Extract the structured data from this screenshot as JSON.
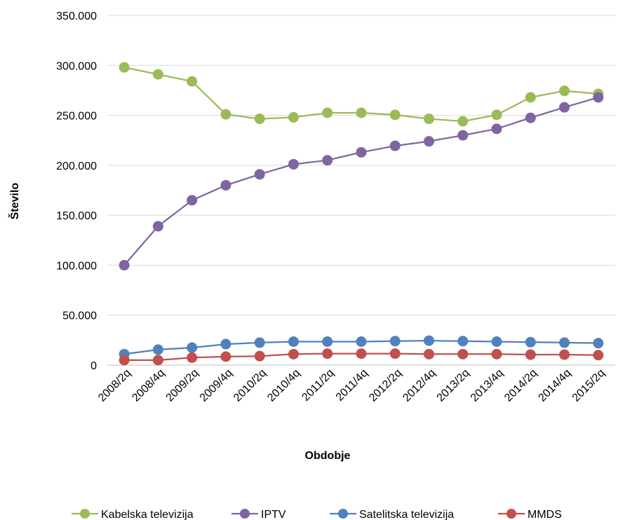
{
  "chart_data": {
    "type": "line",
    "title": "",
    "xlabel": "Obdobje",
    "ylabel": "Število",
    "ylim": [
      0,
      350000
    ],
    "yticks": [
      0,
      50000,
      100000,
      150000,
      200000,
      250000,
      300000,
      350000
    ],
    "ytick_labels": [
      "0",
      "50.000",
      "100.000",
      "150.000",
      "200.000",
      "250.000",
      "300.000",
      "350.000"
    ],
    "grid": true,
    "legend_position": "bottom",
    "categories": [
      "2008/2q",
      "2008/4q",
      "2009/2q",
      "2009/4q",
      "2010/2q",
      "2010/4q",
      "2011/2q",
      "2011/4q",
      "2012/2q",
      "2012/4q",
      "2013/2q",
      "2013/4q",
      "2014/2q",
      "2014/4q",
      "2015/2q"
    ],
    "series": [
      {
        "name": "Kabelska televizija",
        "color": "#9BBB59",
        "values": [
          298000,
          291000,
          284000,
          251000,
          246500,
          248000,
          252500,
          252500,
          250500,
          246500,
          244000,
          250500,
          268000,
          274500,
          271500
        ]
      },
      {
        "name": "IPTV",
        "color": "#8064A2",
        "values": [
          100000,
          139000,
          165000,
          180000,
          191000,
          201000,
          205000,
          213000,
          219500,
          224000,
          230000,
          236500,
          247500,
          258000,
          268000
        ]
      },
      {
        "name": "Satelitska televizija",
        "color": "#4F81BD",
        "values": [
          11000,
          15500,
          17500,
          21000,
          22500,
          23500,
          23500,
          23500,
          24000,
          24500,
          24000,
          23500,
          23000,
          22500,
          22000
        ]
      },
      {
        "name": "MMDS",
        "color": "#C0504D",
        "values": [
          5000,
          5000,
          7500,
          8500,
          9000,
          11000,
          11500,
          11500,
          11500,
          11000,
          11000,
          11000,
          10500,
          10500,
          10000
        ]
      }
    ]
  }
}
